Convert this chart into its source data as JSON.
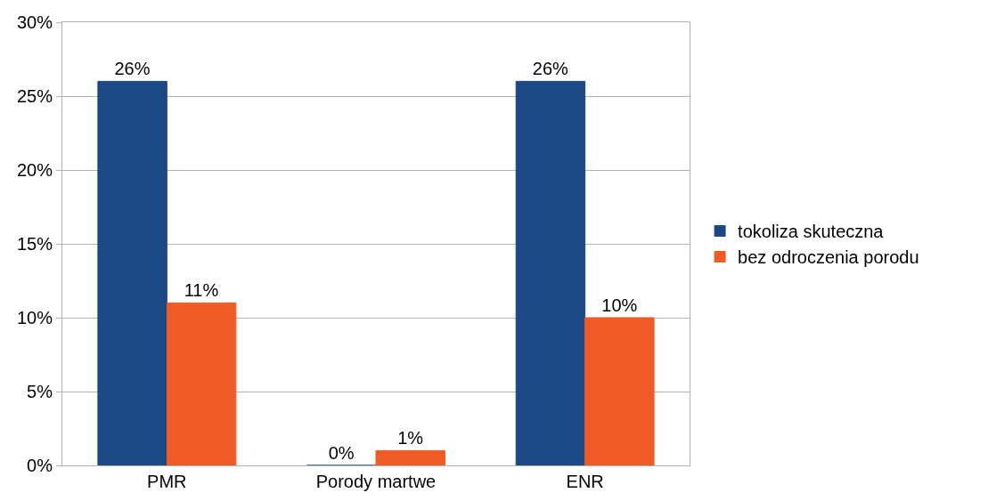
{
  "chart_data": {
    "type": "bar",
    "categories": [
      "PMR",
      "Porody martwe",
      "ENR"
    ],
    "series": [
      {
        "name": "tokoliza skuteczna",
        "color": "#1a4985",
        "values": [
          26,
          0,
          26
        ],
        "value_labels": [
          "26%",
          "0%",
          "26%"
        ]
      },
      {
        "name": "bez odroczenia porodu",
        "color": "#f05a24",
        "values": [
          11,
          1,
          10
        ],
        "value_labels": [
          "11%",
          "1%",
          "10%"
        ]
      }
    ],
    "ylim": [
      0,
      30
    ],
    "yticks": [
      {
        "value": 0,
        "label": "0%"
      },
      {
        "value": 5,
        "label": "5%"
      },
      {
        "value": 10,
        "label": "10%"
      },
      {
        "value": 15,
        "label": "15%"
      },
      {
        "value": 20,
        "label": "20%"
      },
      {
        "value": 25,
        "label": "25%"
      },
      {
        "value": 30,
        "label": "30%"
      }
    ],
    "grid": "y",
    "legend": "right"
  }
}
